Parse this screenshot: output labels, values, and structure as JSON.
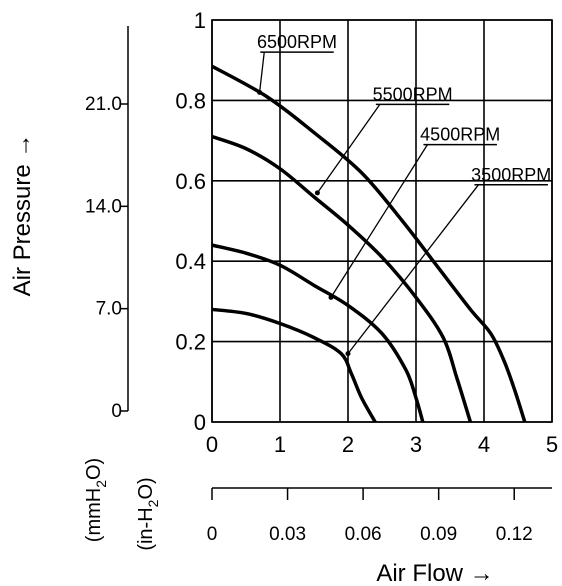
{
  "chart_data": {
    "type": "line",
    "y_primary": {
      "label": "Air Pressure →",
      "unit": "in-H2O",
      "ylim": [
        0,
        1
      ],
      "ticks": [
        "0",
        "0.2",
        "0.4",
        "0.6",
        "0.8",
        "1"
      ]
    },
    "y_secondary": {
      "unit": "mmH2O",
      "ticks": [
        {
          "label": "0",
          "value": 0
        },
        {
          "label": "7.0",
          "value": 7.0
        },
        {
          "label": "14.0",
          "value": 14.0
        },
        {
          "label": "21.0",
          "value": 21.0
        }
      ]
    },
    "x_primary": {
      "xlim": [
        0,
        5
      ],
      "ticks": [
        "0",
        "1",
        "2",
        "3",
        "4",
        "5"
      ]
    },
    "x_secondary": {
      "label": "Air Flow →",
      "ticks": [
        {
          "label": "0",
          "value": 0
        },
        {
          "label": "0.03",
          "value": 0.03
        },
        {
          "label": "0.06",
          "value": 0.06
        },
        {
          "label": "0.09",
          "value": 0.09
        },
        {
          "label": "0.12",
          "value": 0.12
        }
      ]
    },
    "grid": true,
    "series": [
      {
        "name": "6500RPM",
        "points": [
          [
            0,
            0.885
          ],
          [
            0.8,
            0.81
          ],
          [
            1.5,
            0.72
          ],
          [
            2.2,
            0.62
          ],
          [
            2.8,
            0.5
          ],
          [
            3.3,
            0.39
          ],
          [
            3.8,
            0.28
          ],
          [
            4.1,
            0.22
          ],
          [
            4.3,
            0.15
          ],
          [
            4.45,
            0.08
          ],
          [
            4.6,
            0
          ]
        ]
      },
      {
        "name": "5500RPM",
        "points": [
          [
            0,
            0.71
          ],
          [
            0.5,
            0.68
          ],
          [
            1.0,
            0.63
          ],
          [
            1.5,
            0.56
          ],
          [
            2.0,
            0.49
          ],
          [
            2.5,
            0.41
          ],
          [
            3.0,
            0.31
          ],
          [
            3.4,
            0.21
          ],
          [
            3.6,
            0.11
          ],
          [
            3.8,
            0
          ]
        ]
      },
      {
        "name": "4500RPM",
        "points": [
          [
            0,
            0.44
          ],
          [
            0.5,
            0.42
          ],
          [
            1.0,
            0.39
          ],
          [
            1.5,
            0.34
          ],
          [
            2.0,
            0.29
          ],
          [
            2.5,
            0.22
          ],
          [
            2.85,
            0.13
          ],
          [
            3.0,
            0.06
          ],
          [
            3.1,
            0
          ]
        ]
      },
      {
        "name": "3500RPM",
        "points": [
          [
            0,
            0.28
          ],
          [
            0.5,
            0.27
          ],
          [
            1.0,
            0.245
          ],
          [
            1.5,
            0.21
          ],
          [
            1.9,
            0.17
          ],
          [
            2.05,
            0.12
          ],
          [
            2.2,
            0.06
          ],
          [
            2.4,
            0
          ]
        ]
      }
    ],
    "annotations": [
      {
        "text": "6500RPM",
        "x": 1.25,
        "y": 0.93,
        "target": [
          0.7,
          0.82
        ]
      },
      {
        "text": "5500RPM",
        "x": 2.95,
        "y": 0.8,
        "target": [
          1.55,
          0.57
        ]
      },
      {
        "text": "4500RPM",
        "x": 3.65,
        "y": 0.7,
        "target": [
          1.75,
          0.31
        ]
      },
      {
        "text": "3500RPM",
        "x": 4.4,
        "y": 0.6,
        "target": [
          2.0,
          0.17
        ]
      }
    ]
  }
}
